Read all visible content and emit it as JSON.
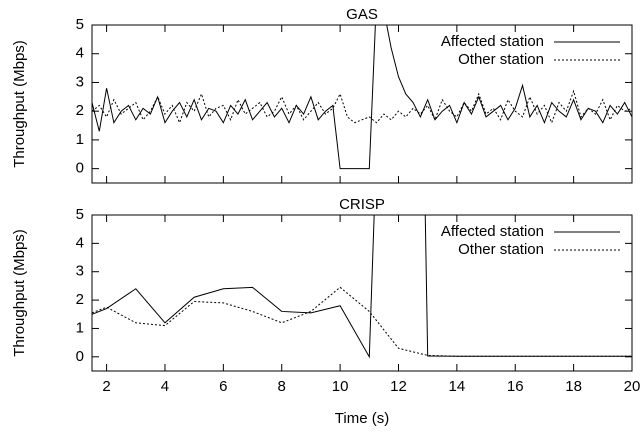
{
  "chart_data": [
    {
      "type": "line",
      "title": "GAS",
      "y_label": "Throughput (Mbps)",
      "xlim": [
        1.5,
        20
      ],
      "ylim": [
        -0.5,
        5
      ],
      "xticks": [
        2,
        4,
        6,
        8,
        10,
        12,
        14,
        16,
        18,
        20
      ],
      "yticks": [
        0,
        1,
        2,
        3,
        4,
        5
      ],
      "legend": "upper right",
      "series": [
        {
          "name": "Affected station",
          "color": "#000000",
          "dash": "solid",
          "x": [
            1.5,
            1.75,
            2,
            2.25,
            2.5,
            2.75,
            3,
            3.25,
            3.5,
            3.75,
            4,
            4.25,
            4.5,
            4.75,
            5,
            5.25,
            5.5,
            5.75,
            6,
            6.25,
            6.5,
            6.75,
            7,
            7.25,
            7.5,
            7.75,
            8,
            8.25,
            8.5,
            8.75,
            9,
            9.25,
            9.5,
            9.75,
            10,
            10.25,
            10.5,
            10.75,
            11,
            11.25,
            11.5,
            11.75,
            12,
            12.25,
            12.5,
            12.75,
            13,
            13.25,
            13.5,
            13.75,
            14,
            14.25,
            14.5,
            14.75,
            15,
            15.25,
            15.5,
            15.75,
            16,
            16.25,
            16.5,
            16.75,
            17,
            17.25,
            17.5,
            17.75,
            18,
            18.25,
            18.5,
            18.75,
            19,
            19.25,
            19.5,
            19.75,
            20
          ],
          "values": [
            2.3,
            1.3,
            2.8,
            1.6,
            2.0,
            2.2,
            1.7,
            2.1,
            1.9,
            2.5,
            1.6,
            2.0,
            2.3,
            1.8,
            2.4,
            1.7,
            2.1,
            2.0,
            1.6,
            2.2,
            1.9,
            2.4,
            1.7,
            2.0,
            2.3,
            1.8,
            2.1,
            1.6,
            2.2,
            1.9,
            2.5,
            1.7,
            2.0,
            2.2,
            0,
            0,
            0,
            0,
            0,
            6,
            5.5,
            4.2,
            3.2,
            2.6,
            2.3,
            1.8,
            2.4,
            1.7,
            2.0,
            2.2,
            1.6,
            2.3,
            1.9,
            2.5,
            1.8,
            2.0,
            2.2,
            1.7,
            2.1,
            2.9,
            1.8,
            2.2,
            1.6,
            2.3,
            2.0,
            1.8,
            2.4,
            1.7,
            2.1,
            2.0,
            1.6,
            2.2,
            1.9,
            2.3,
            1.8
          ]
        },
        {
          "name": "Other station",
          "color": "#000000",
          "dash": "dotted",
          "x": [
            1.5,
            1.75,
            2,
            2.25,
            2.5,
            2.75,
            3,
            3.25,
            3.5,
            3.75,
            4,
            4.25,
            4.5,
            4.75,
            5,
            5.25,
            5.5,
            5.75,
            6,
            6.25,
            6.5,
            6.75,
            7,
            7.25,
            7.5,
            7.75,
            8,
            8.25,
            8.5,
            8.75,
            9,
            9.25,
            9.5,
            9.75,
            10,
            10.25,
            10.5,
            10.75,
            11,
            11.25,
            11.5,
            11.75,
            12,
            12.25,
            12.5,
            12.75,
            13,
            13.25,
            13.5,
            13.75,
            14,
            14.25,
            14.5,
            14.75,
            15,
            15.25,
            15.5,
            15.75,
            16,
            16.25,
            16.5,
            16.75,
            17,
            17.25,
            17.5,
            17.75,
            18,
            18.25,
            18.5,
            18.75,
            19,
            19.25,
            19.5,
            19.75,
            20
          ],
          "values": [
            2.0,
            2.2,
            1.8,
            2.4,
            1.9,
            2.1,
            2.3,
            1.7,
            2.0,
            2.5,
            1.9,
            2.2,
            1.6,
            2.3,
            2.0,
            2.6,
            1.8,
            2.1,
            2.2,
            1.7,
            2.4,
            1.9,
            2.1,
            2.3,
            1.8,
            2.0,
            2.5,
            1.9,
            2.2,
            1.7,
            2.0,
            2.3,
            1.9,
            2.1,
            2.6,
            1.8,
            1.6,
            1.7,
            1.8,
            1.6,
            1.9,
            1.7,
            2.0,
            1.8,
            2.1,
            1.9,
            2.2,
            1.7,
            2.4,
            2.0,
            1.8,
            2.3,
            2.0,
            2.6,
            1.9,
            2.1,
            1.7,
            2.4,
            2.0,
            1.8,
            2.5,
            1.9,
            2.2,
            1.6,
            2.3,
            2.0,
            2.7,
            1.8,
            2.1,
            1.9,
            2.4,
            1.7,
            2.2,
            2.0,
            2.1
          ]
        }
      ]
    },
    {
      "type": "line",
      "title": "CRISP",
      "y_label": "Throughput (Mbps)",
      "x_label": "Time (s)",
      "xlim": [
        1.5,
        20
      ],
      "ylim": [
        -0.5,
        5
      ],
      "xticks": [
        2,
        4,
        6,
        8,
        10,
        12,
        14,
        16,
        18,
        20
      ],
      "yticks": [
        0,
        1,
        2,
        3,
        4,
        5
      ],
      "legend": "upper right",
      "series": [
        {
          "name": "Affected station",
          "color": "#000000",
          "dash": "solid",
          "x": [
            1.5,
            2,
            3,
            4,
            5,
            6,
            7,
            8,
            9,
            10,
            11,
            11.2,
            12.9,
            13,
            14,
            15,
            16,
            17,
            18,
            19,
            20
          ],
          "values": [
            1.5,
            1.7,
            2.4,
            1.2,
            2.1,
            2.4,
            2.45,
            1.6,
            1.55,
            1.8,
            0,
            6,
            6,
            0.03,
            0.02,
            0.02,
            0.02,
            0.02,
            0.02,
            0.02,
            0.02
          ]
        },
        {
          "name": "Other station",
          "color": "#000000",
          "dash": "dotted",
          "x": [
            1.5,
            2,
            3,
            4,
            5,
            6,
            7,
            8,
            9,
            10,
            11,
            12,
            13,
            14,
            15,
            16,
            17,
            18,
            19,
            20
          ],
          "values": [
            1.55,
            1.75,
            1.2,
            1.1,
            1.95,
            1.9,
            1.6,
            1.2,
            1.6,
            2.45,
            1.6,
            0.3,
            0.05,
            0.02,
            0.02,
            0.02,
            0.02,
            0.02,
            0.02,
            0.02
          ]
        }
      ]
    }
  ]
}
